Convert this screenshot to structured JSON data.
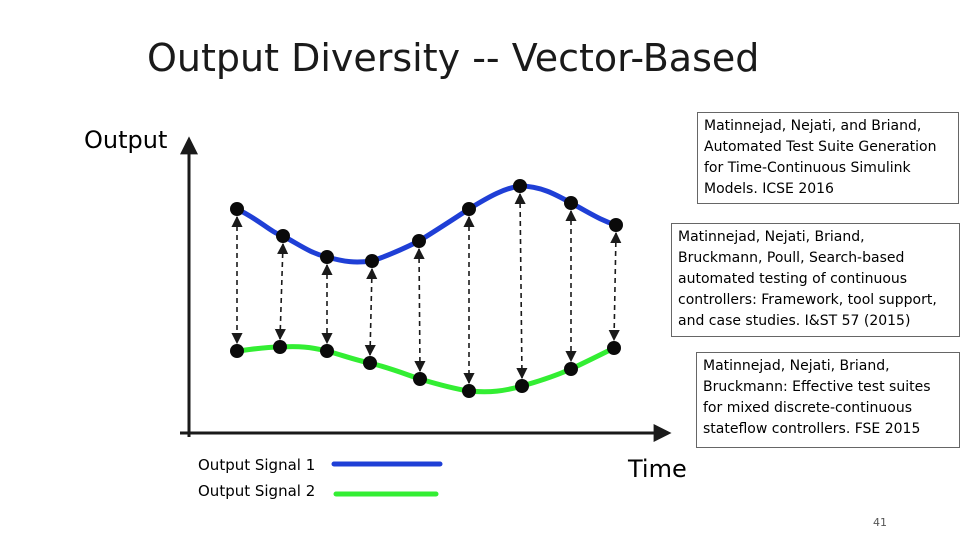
{
  "slide": {
    "title": "Output Diversity -- Vector-Based",
    "page_number": "41"
  },
  "axes": {
    "y_label": "Output",
    "x_label": "Time"
  },
  "references": [
    {
      "text": "Matinnejad, Nejati, and Briand, Automated Test Suite Generation for Time-Continuous Simulink Models. ICSE 2016"
    },
    {
      "text": "Matinnejad, Nejati, Briand, Bruckmann, Poull, Search-based automated testing of continuous controllers: Framework, tool support, and case studies. I&ST 57 (2015)"
    },
    {
      "text": "Matinnejad, Nejati, Briand, Bruckmann: Effective test suites for mixed discrete-continuous stateflow controllers. FSE 2015"
    }
  ],
  "legend": [
    {
      "label": "Output Signal 1",
      "color": "#1f3fd6"
    },
    {
      "label": "Output Signal 2",
      "color": "#33ee33"
    }
  ],
  "colors": {
    "axis": "#1a1a1a",
    "point": "#0a0a0a",
    "signal1": "#1f3fd6",
    "signal2": "#33ee33"
  }
}
